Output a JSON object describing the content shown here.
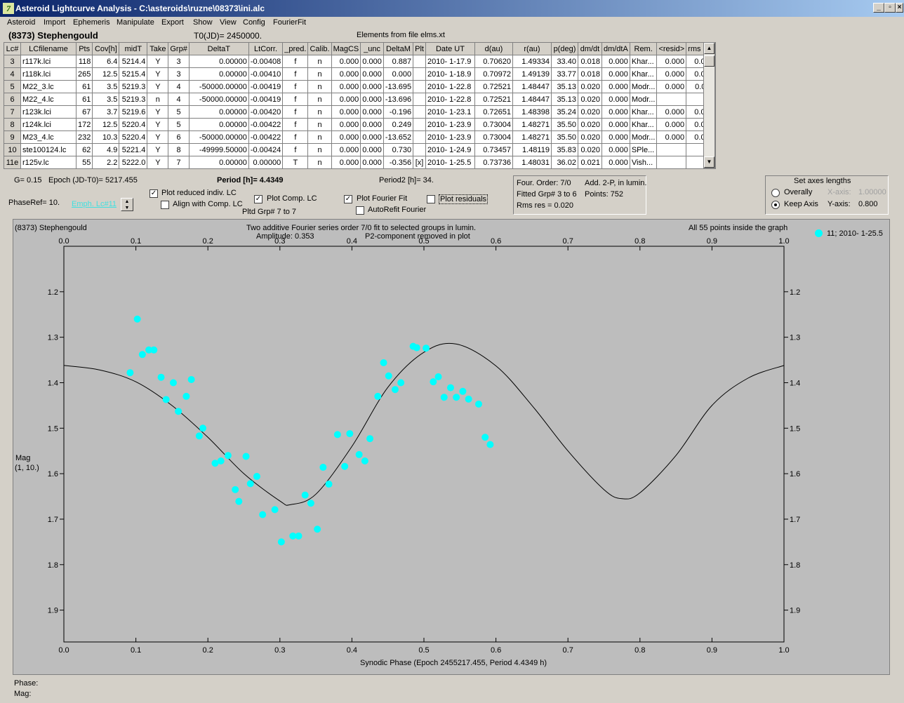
{
  "window": {
    "title": "Asteroid Lightcurve Analysis - C:\\asteroids\\ruzne\\08373\\ini.alc"
  },
  "menu": [
    "Asteroid",
    "Import",
    "Ephemeris",
    "Manipulate",
    "Export",
    "Show",
    "View",
    "Config",
    "FourierFit"
  ],
  "header": {
    "object": "(8373) Stephengould",
    "t0": "T0(JD)= 2450000.",
    "elements": "Elements from file elms.xt"
  },
  "table": {
    "columns": [
      "Lc#",
      "LCfilename",
      "Pts",
      "Cov[h]",
      "midT",
      "Take",
      "Grp#",
      "DeltaT",
      "LtCorr.",
      "_pred.",
      "Calib.",
      "MagCS",
      "_unc",
      "DeltaM",
      "Plt",
      "Date UT",
      "d(au)",
      "r(au)",
      "p(deg)",
      "dm/dt",
      "dm/dtA",
      "Rem.",
      "<resid>",
      "rms res"
    ],
    "rows": [
      [
        "3",
        "r117k.lci",
        "118",
        "6.4",
        "5214.4",
        "Y",
        "3",
        "0.00000",
        "-0.00408",
        "f",
        "n",
        "0.000",
        "0.000",
        "0.887",
        "",
        "2010- 1-17.9",
        "0.70620",
        "1.49334",
        "33.40",
        "0.018",
        "0.000",
        "Khar...",
        "0.000",
        "0.017"
      ],
      [
        "4",
        "r118k.lci",
        "265",
        "12.5",
        "5215.4",
        "Y",
        "3",
        "0.00000",
        "-0.00410",
        "f",
        "n",
        "0.000",
        "0.000",
        "0.000",
        "",
        "2010- 1-18.9",
        "0.70972",
        "1.49139",
        "33.77",
        "0.018",
        "0.000",
        "Khar...",
        "0.000",
        "0.018"
      ],
      [
        "5",
        "M22_3.lc",
        "61",
        "3.5",
        "5219.3",
        "Y",
        "4",
        "-50000.00000",
        "-0.00419",
        "f",
        "n",
        "0.000",
        "0.000",
        "-13.695",
        "",
        "2010- 1-22.8",
        "0.72521",
        "1.48447",
        "35.13",
        "0.020",
        "0.000",
        "Modr...",
        "0.000",
        "0.011"
      ],
      [
        "6",
        "M22_4.lc",
        "61",
        "3.5",
        "5219.3",
        "n",
        "4",
        "-50000.00000",
        "-0.00419",
        "f",
        "n",
        "0.000",
        "0.000",
        "-13.696",
        "",
        "2010- 1-22.8",
        "0.72521",
        "1.48447",
        "35.13",
        "0.020",
        "0.000",
        "Modr...",
        "",
        ""
      ],
      [
        "7",
        "r123k.lci",
        "67",
        "3.7",
        "5219.6",
        "Y",
        "5",
        "0.00000",
        "-0.00420",
        "f",
        "n",
        "0.000",
        "0.000",
        "-0.196",
        "",
        "2010- 1-23.1",
        "0.72651",
        "1.48398",
        "35.24",
        "0.020",
        "0.000",
        "Khar...",
        "0.000",
        "0.022"
      ],
      [
        "8",
        "r124k.lci",
        "172",
        "12.5",
        "5220.4",
        "Y",
        "5",
        "0.00000",
        "-0.00422",
        "f",
        "n",
        "0.000",
        "0.000",
        "0.249",
        "",
        "2010- 1-23.9",
        "0.73004",
        "1.48271",
        "35.50",
        "0.020",
        "0.000",
        "Khar...",
        "0.000",
        "0.025"
      ],
      [
        "9",
        "M23_4.lc",
        "232",
        "10.3",
        "5220.4",
        "Y",
        "6",
        "-50000.00000",
        "-0.00422",
        "f",
        "n",
        "0.000",
        "0.000",
        "-13.652",
        "",
        "2010- 1-23.9",
        "0.73004",
        "1.48271",
        "35.50",
        "0.020",
        "0.000",
        "Modr...",
        "0.000",
        "0.020"
      ],
      [
        "10",
        "ste100124.lc",
        "62",
        "4.9",
        "5221.4",
        "Y",
        "8",
        "-49999.50000",
        "-0.00424",
        "f",
        "n",
        "0.000",
        "0.000",
        "0.730",
        "",
        "2010- 1-24.9",
        "0.73457",
        "1.48119",
        "35.83",
        "0.020",
        "0.000",
        "SPle...",
        "",
        ""
      ],
      [
        "11e",
        "r125v.lc",
        "55",
        "2.2",
        "5222.0",
        "Y",
        "7",
        "0.00000",
        "0.00000",
        "T",
        "n",
        "0.000",
        "0.000",
        "-0.356",
        "[x]",
        "2010- 1-25.5",
        "0.73736",
        "1.48031",
        "36.02",
        "0.021",
        "0.000",
        "Vish...",
        "",
        ""
      ]
    ]
  },
  "controls": {
    "g": "G= 0.15",
    "epoch": "Epoch (JD-T0)= 5217.455",
    "period": "Period [h]= 4.4349",
    "period2": "Period2 [h]= 34.",
    "phaseref": "PhaseRef= 10.",
    "emph": "Emph. Lc#11",
    "plot_reduced": "Plot reduced indiv. LC",
    "align_comp": "Align with Comp. LC",
    "plot_comp": "Plot Comp. LC",
    "pltd_grp": "Pltd Grp#  7  to   7",
    "plot_fourier": "Plot Fourier Fit",
    "autorefit": "AutoRefit Fourier",
    "plot_residuals": "Plot residuals",
    "checks": {
      "plot_reduced": true,
      "align_comp": false,
      "plot_comp": true,
      "plot_fourier": true,
      "autorefit": false,
      "plot_residuals": false
    }
  },
  "fourier": {
    "order": "Four. Order:  7/0",
    "add": "Add. 2-P, in lumin.",
    "fitted": "Fitted Grp# 3 to 6",
    "points": "Points: 752",
    "rms": "Rms res      = 0.020"
  },
  "axes_box": {
    "title": "Set axes lengths",
    "overally": "Overally",
    "keep": "Keep Axis",
    "xaxis_label": "X-axis:",
    "xaxis_val": "1.00000",
    "yaxis_label": "Y-axis:",
    "yaxis_val": "0.800",
    "selected": "keep"
  },
  "plot": {
    "name": "(8373) Stephengould",
    "desc1": "Two additive Fourier series order 7/0 fit to selected groups in lumin.",
    "amplitude": "Amplitude: 0.353",
    "p2": "P2-component removed in plot",
    "inside": "All 55 points inside the graph",
    "legend": "11; 2010- 1-25.5",
    "ylabel1": "Mag",
    "ylabel2": "(1, 10.)",
    "xlabel": "Synodic Phase (Epoch 2455217.455, Period 4.4349 h)"
  },
  "chart_data": {
    "type": "scatter",
    "xlim": [
      0,
      1
    ],
    "ylim": [
      1.1,
      1.97
    ],
    "y_inverted": true,
    "xticks": [
      "0.0",
      "0.1",
      "0.2",
      "0.3",
      "0.4",
      "0.5",
      "0.6",
      "0.7",
      "0.8",
      "0.9",
      "1.0"
    ],
    "yticks": [
      "1.2",
      "1.3",
      "1.4",
      "1.5",
      "1.6",
      "1.7",
      "1.8",
      "1.9"
    ],
    "point_color": "#00ffff",
    "series": [
      {
        "name": "11; 2010- 1-25.5",
        "x": [
          0.092,
          0.102,
          0.109,
          0.118,
          0.125,
          0.135,
          0.142,
          0.152,
          0.159,
          0.17,
          0.177,
          0.188,
          0.193,
          0.21,
          0.218,
          0.228,
          0.238,
          0.243,
          0.253,
          0.259,
          0.268,
          0.276,
          0.293,
          0.302,
          0.318,
          0.326,
          0.335,
          0.343,
          0.352,
          0.36,
          0.368,
          0.38,
          0.39,
          0.397,
          0.41,
          0.418,
          0.425,
          0.436,
          0.444,
          0.451,
          0.46,
          0.468,
          0.485,
          0.49,
          0.503,
          0.513,
          0.52,
          0.528,
          0.537,
          0.545,
          0.554,
          0.562,
          0.576,
          0.585,
          0.592
        ],
        "y": [
          1.378,
          1.26,
          1.338,
          1.328,
          1.328,
          1.388,
          1.437,
          1.4,
          1.463,
          1.43,
          1.393,
          1.517,
          1.5,
          1.577,
          1.572,
          1.56,
          1.635,
          1.661,
          1.562,
          1.622,
          1.606,
          1.69,
          1.679,
          1.75,
          1.737,
          1.737,
          1.647,
          1.665,
          1.722,
          1.586,
          1.623,
          1.514,
          1.584,
          1.512,
          1.558,
          1.572,
          1.523,
          1.43,
          1.356,
          1.385,
          1.415,
          1.4,
          1.32,
          1.323,
          1.324,
          1.398,
          1.387,
          1.432,
          1.411,
          1.432,
          1.419,
          1.436,
          1.447,
          1.52,
          1.536
        ]
      },
      {
        "name": "",
        "type": "line",
        "x": [
          0,
          0.05,
          0.1,
          0.15,
          0.2,
          0.25,
          0.3,
          0.315,
          0.35,
          0.4,
          0.45,
          0.5,
          0.545,
          0.6,
          0.65,
          0.7,
          0.75,
          0.775,
          0.8,
          0.85,
          0.9,
          0.95,
          1.0
        ],
        "y": [
          1.362,
          1.372,
          1.398,
          1.45,
          1.52,
          1.6,
          1.66,
          1.668,
          1.645,
          1.54,
          1.41,
          1.333,
          1.315,
          1.363,
          1.45,
          1.55,
          1.635,
          1.655,
          1.642,
          1.56,
          1.45,
          1.39,
          1.362
        ]
      }
    ]
  },
  "status": {
    "phase": "Phase:",
    "mag": "Mag:"
  }
}
